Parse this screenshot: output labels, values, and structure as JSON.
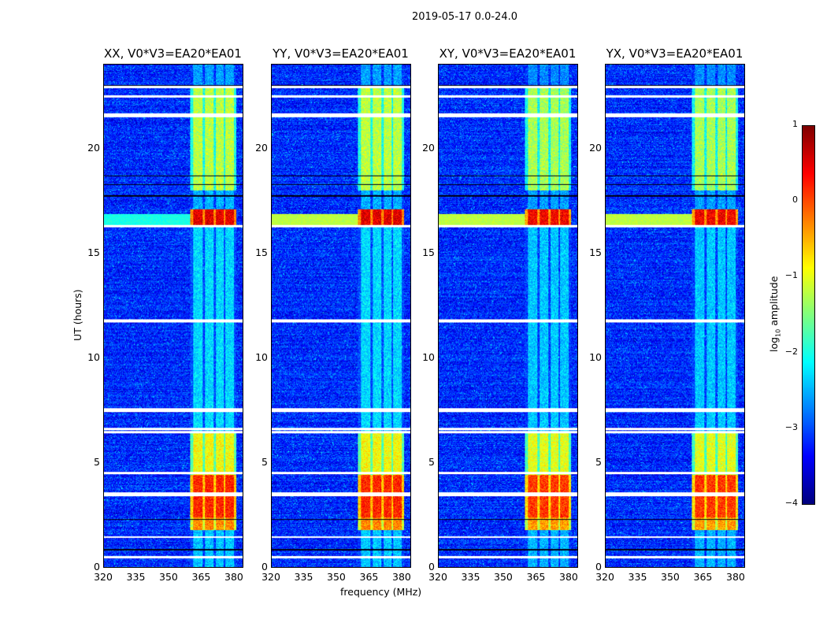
{
  "suptitle": "2019-05-17 0.0-24.0",
  "chart_data": {
    "type": "heatmap",
    "xlabel": "frequency (MHz)",
    "ylabel": "UT (hours)",
    "xlim": [
      320,
      384
    ],
    "ylim": [
      0,
      24
    ],
    "xticks": [
      320,
      335,
      350,
      365,
      380
    ],
    "yticks": [
      0,
      5,
      10,
      15,
      20
    ],
    "panels": [
      {
        "title": "XX, V0*V3=EA20*EA01"
      },
      {
        "title": "YY, V0*V3=EA20*EA01"
      },
      {
        "title": "XY, V0*V3=EA20*EA01"
      },
      {
        "title": "YX, V0*V3=EA20*EA01"
      }
    ],
    "colorbar": {
      "label_main": "log",
      "label_sub": "10",
      "label_rest": " amplitude",
      "range": [
        -4,
        1
      ],
      "ticks": [
        1,
        0,
        -1,
        -2,
        -3,
        -4
      ],
      "ticklabels": [
        "1",
        "0",
        "−1",
        "−2",
        "−3",
        "−4"
      ],
      "colormap": "jet"
    },
    "background_level": -3.2,
    "rfi_channels_mhz": [
      [
        361,
        365.5
      ],
      [
        366.5,
        370.5
      ],
      [
        371.5,
        375
      ],
      [
        376,
        380
      ]
    ],
    "rfi_epochs": [
      {
        "ut": [
          1.8,
          2.4
        ],
        "level": -0.3
      },
      {
        "ut": [
          2.4,
          4.4
        ],
        "level": 0.2
      },
      {
        "ut": [
          4.4,
          6.5
        ],
        "level": -0.9
      },
      {
        "ut": [
          16.3,
          17.1
        ],
        "level": 0.5
      },
      {
        "ut": [
          18.0,
          23.0
        ],
        "level": -1.2
      },
      {
        "ut": [
          6.5,
          16.3
        ],
        "level": -2.3
      },
      {
        "ut": [
          0,
          1.8
        ],
        "level": -2.4
      },
      {
        "ut": [
          23.0,
          24
        ],
        "level": -2.6
      }
    ],
    "broadband_events": [
      {
        "ut": [
          16.3,
          16.9
        ],
        "level": -1.2
      }
    ],
    "flagged_rows_ut": [
      0.5,
      1.45,
      3.45,
      3.55,
      4.5,
      6.45,
      6.6,
      7.45,
      7.55,
      11.75,
      11.8,
      16.3,
      21.55,
      21.65,
      22.5,
      22.95
    ],
    "dark_rows_ut": [
      0.85,
      2.3,
      17.75,
      18.3,
      18.7,
      23.0
    ]
  }
}
